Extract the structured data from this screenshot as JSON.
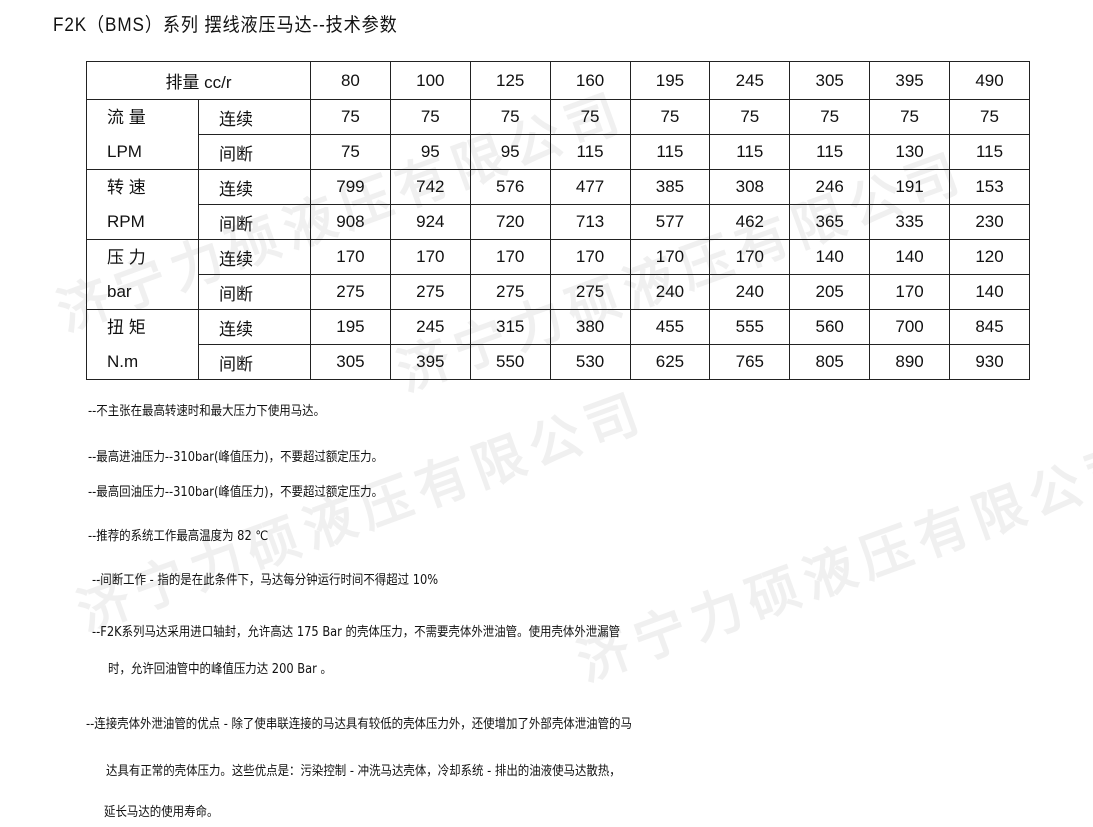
{
  "title": "F2K（BMS）系列 摆线液压马达--技术参数",
  "watermark": "济宁力硕液压有限公司",
  "table": {
    "header_label": "排量 cc/r",
    "displacements": [
      "80",
      "100",
      "125",
      "160",
      "195",
      "245",
      "305",
      "395",
      "490"
    ],
    "groups": [
      {
        "name_line1": "流 量",
        "name_line2": "LPM",
        "rows": [
          {
            "label": "连续",
            "values": [
              "75",
              "75",
              "75",
              "75",
              "75",
              "75",
              "75",
              "75",
              "75"
            ]
          },
          {
            "label": "间断",
            "values": [
              "75",
              "95",
              "95",
              "115",
              "115",
              "115",
              "115",
              "130",
              "115"
            ]
          }
        ]
      },
      {
        "name_line1": "转 速",
        "name_line2": "RPM",
        "rows": [
          {
            "label": "连续",
            "values": [
              "799",
              "742",
              "576",
              "477",
              "385",
              "308",
              "246",
              "191",
              "153"
            ]
          },
          {
            "label": "间断",
            "values": [
              "908",
              "924",
              "720",
              "713",
              "577",
              "462",
              "365",
              "335",
              "230"
            ]
          }
        ]
      },
      {
        "name_line1": "压 力",
        "name_line2": "bar",
        "rows": [
          {
            "label": "连续",
            "values": [
              "170",
              "170",
              "170",
              "170",
              "170",
              "170",
              "140",
              "140",
              "120"
            ]
          },
          {
            "label": "间断",
            "values": [
              "275",
              "275",
              "275",
              "275",
              "240",
              "240",
              "205",
              "170",
              "140"
            ]
          }
        ]
      },
      {
        "name_line1": "扭 矩",
        "name_line2": "N.m",
        "rows": [
          {
            "label": "连续",
            "values": [
              "195",
              "245",
              "315",
              "380",
              "455",
              "555",
              "560",
              "700",
              "845"
            ]
          },
          {
            "label": "间断",
            "values": [
              "305",
              "395",
              "550",
              "530",
              "625",
              "765",
              "805",
              "890",
              "930"
            ]
          }
        ]
      }
    ]
  },
  "notes": [
    "--不主张在最高转速时和最大压力下使用马达。",
    "--最高进油压力--310bar(峰值压力)，不要超过额定压力。",
    "--最高回油压力--310bar(峰值压力)，不要超过额定压力。",
    "--推荐的系统工作最高温度为 82 ℃",
    "--间断工作 - 指的是在此条件下，马达每分钟运行时间不得超过 10%",
    "--F2K系列马达采用进口轴封，允许高达 175 Bar 的壳体压力，不需要壳体外泄油管。使用壳体外泄漏管",
    "时，允许回油管中的峰值压力达 200 Bar 。",
    "--连接壳体外泄油管的优点 - 除了使串联连接的马达具有较低的壳体压力外，还使增加了外部壳体泄油管的马",
    "达具有正常的壳体压力。这些优点是：污染控制 - 冲洗马达壳体，冷却系统 - 排出的油液使马达散热，",
    "延长马达的使用寿命。"
  ]
}
